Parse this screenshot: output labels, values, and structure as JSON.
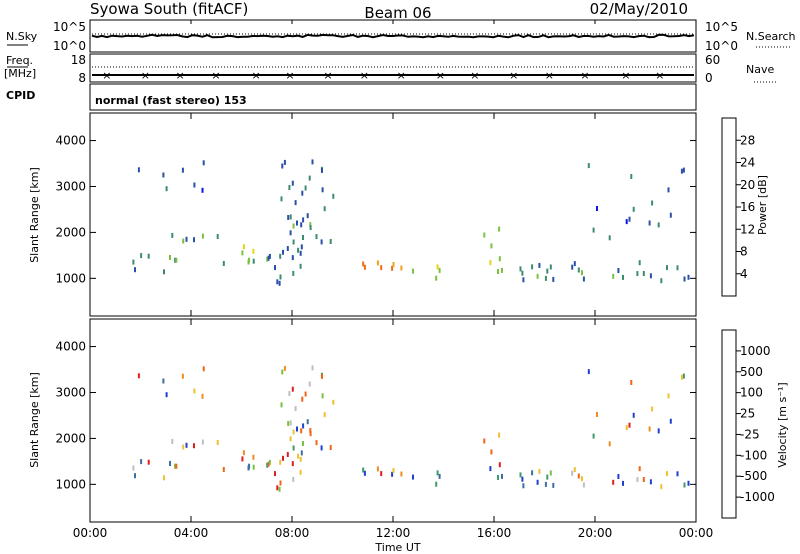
{
  "header": {
    "radar_title": "Syowa South (fitACF)",
    "beam": "Beam 06",
    "date": "02/May/2010"
  },
  "top_panel": {
    "left_label": "N.Sky",
    "left_ticks": [
      "10^5",
      "10^0"
    ],
    "right_ticks": [
      "10^5",
      "10^0"
    ],
    "right_label": "N.Search"
  },
  "freq_panel": {
    "left_label_1": "Freq.",
    "left_label_2": "[MHz]",
    "left_ticks": [
      "18",
      "8"
    ],
    "right_ticks": [
      "60",
      "0"
    ],
    "right_label": "Nave"
  },
  "cpid": {
    "label": "CPID",
    "value": "normal (fast stereo) 153"
  },
  "x_axis": {
    "label": "Time UT",
    "ticks": [
      "00:00",
      "04:00",
      "08:00",
      "12:00",
      "16:00",
      "20:00",
      "00:00"
    ]
  },
  "y_axis": {
    "label": "Slant Range [km]",
    "ticks": [
      "1000",
      "2000",
      "3000",
      "4000"
    ]
  },
  "power_bar": {
    "label": "Power [dB]",
    "ticks": [
      "4",
      "8",
      "12",
      "16",
      "20",
      "24",
      "28"
    ],
    "colors": [
      "#0a14e6",
      "#2a4fa8",
      "#3d8b6e",
      "#7cc043",
      "#e6d419",
      "#f0a020",
      "#f06c14",
      "#e01e1e"
    ]
  },
  "velocity_bar": {
    "label": "Velocity [m s⁻¹]",
    "ticks": [
      "1000",
      "500",
      "100",
      "25",
      "-25",
      "-100",
      "-500",
      "-1000"
    ],
    "colors": [
      "#1f3fd0",
      "#3a6fa0",
      "#3d9a6a",
      "#7ac040",
      "#bebebe",
      "#f0c030",
      "#f08c20",
      "#f06418",
      "#e01e1e"
    ]
  },
  "chart_data": {
    "type": "heatmap",
    "x_range_hours": [
      0,
      24
    ],
    "y_range_km": [
      180,
      4600
    ],
    "echo_regions": [
      {
        "t0": 0.5,
        "t1": 3.5,
        "r0": 1100,
        "r1": 1800,
        "density": 0.16,
        "power": 10
      },
      {
        "t0": 1.5,
        "t1": 5.0,
        "r0": 2800,
        "r1": 3600,
        "density": 0.12,
        "power": 7
      },
      {
        "t0": 3.0,
        "t1": 5.5,
        "r0": 1300,
        "r1": 2000,
        "density": 0.2,
        "power": 11
      },
      {
        "t0": 5.5,
        "t1": 7.0,
        "r0": 1300,
        "r1": 1800,
        "density": 0.4,
        "power": 15
      },
      {
        "t0": 7.0,
        "t1": 8.5,
        "r0": 800,
        "r1": 1800,
        "density": 0.4,
        "power": 8
      },
      {
        "t0": 7.5,
        "t1": 9.8,
        "r0": 1700,
        "r1": 2600,
        "density": 0.4,
        "power": 9
      },
      {
        "t0": 7.5,
        "t1": 9.8,
        "r0": 2700,
        "r1": 3600,
        "density": 0.3,
        "power": 8
      },
      {
        "t0": 10.5,
        "t1": 12.5,
        "r0": 1200,
        "r1": 1400,
        "density": 0.8,
        "power": 25
      },
      {
        "t0": 12.5,
        "t1": 14.0,
        "r0": 1000,
        "r1": 1400,
        "density": 0.3,
        "power": 14
      },
      {
        "t0": 15.0,
        "t1": 17.0,
        "r0": 1200,
        "r1": 2200,
        "density": 0.16,
        "power": 16
      },
      {
        "t0": 17.0,
        "t1": 23.8,
        "r0": 1000,
        "r1": 1400,
        "density": 0.45,
        "power": 9
      },
      {
        "t0": 19.0,
        "t1": 23.5,
        "r0": 1500,
        "r1": 3600,
        "density": 0.07,
        "power": 7
      }
    ]
  }
}
